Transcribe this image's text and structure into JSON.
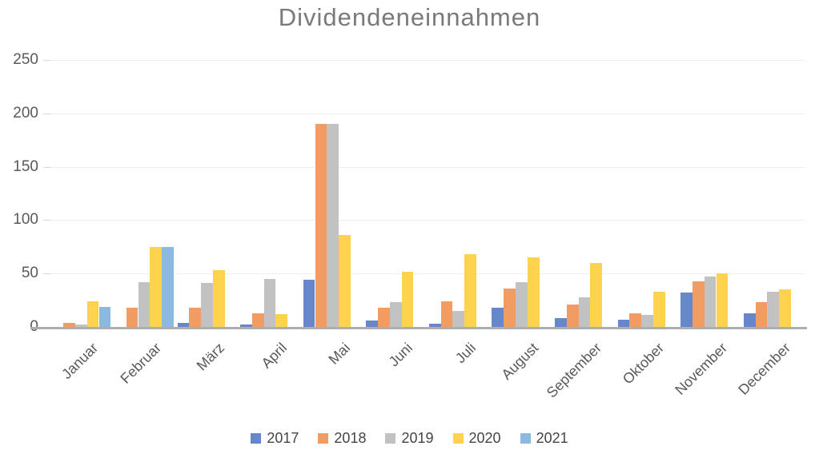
{
  "chart_data": {
    "type": "bar",
    "title": "Dividendeneinnahmen",
    "xlabel": "",
    "ylabel": "",
    "ylim": [
      0,
      250
    ],
    "yticks": [
      0,
      50,
      100,
      150,
      200,
      250
    ],
    "grid": "horizontal",
    "legend_position": "bottom",
    "categories": [
      "Januar",
      "Februar",
      "März",
      "April",
      "Mai",
      "Juni",
      "Juli",
      "August",
      "September",
      "Oktober",
      "November",
      "December"
    ],
    "series": [
      {
        "name": "2017",
        "color": "#6687c9",
        "values": [
          0,
          0,
          4,
          2,
          44,
          6,
          3,
          18,
          8,
          7,
          32,
          13
        ]
      },
      {
        "name": "2018",
        "color": "#f09c62",
        "values": [
          4,
          18,
          18,
          13,
          190,
          18,
          24,
          36,
          21,
          13,
          43,
          23
        ]
      },
      {
        "name": "2019",
        "color": "#c2c2c2",
        "values": [
          2,
          42,
          41,
          45,
          190,
          23,
          15,
          42,
          28,
          11,
          47,
          33
        ]
      },
      {
        "name": "2020",
        "color": "#ffd34d",
        "values": [
          24,
          75,
          53,
          12,
          86,
          52,
          68,
          65,
          60,
          33,
          50,
          35
        ]
      },
      {
        "name": "2021",
        "color": "#8bb9e0",
        "values": [
          19,
          75,
          null,
          null,
          null,
          null,
          null,
          null,
          null,
          null,
          null,
          null
        ]
      }
    ]
  }
}
